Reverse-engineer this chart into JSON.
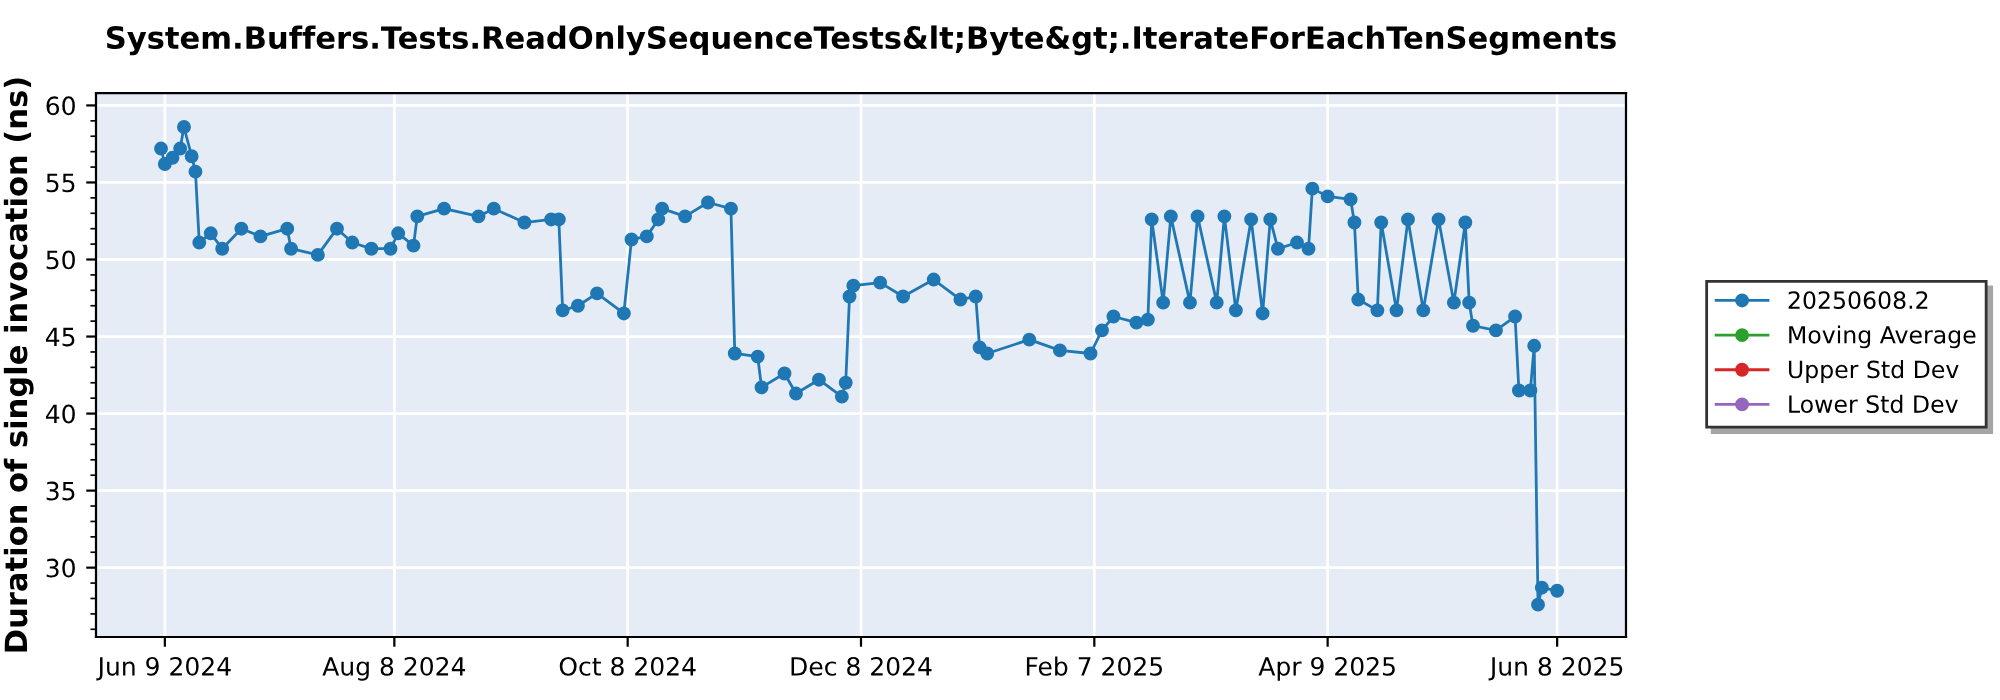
{
  "chart_data": {
    "type": "line",
    "title": "System.Buffers.Tests.ReadOnlySequenceTests&lt;Byte&gt;.IterateForEachTenSegments",
    "ylabel": "Duration of single invocation (ns)",
    "x": [
      "2024-06-08",
      "2024-06-09",
      "2024-06-11",
      "2024-06-13",
      "2024-06-14",
      "2024-06-16",
      "2024-06-17",
      "2024-06-18",
      "2024-06-21",
      "2024-06-24",
      "2024-06-29",
      "2024-07-04",
      "2024-07-11",
      "2024-07-12",
      "2024-07-19",
      "2024-07-24",
      "2024-07-28",
      "2024-08-02",
      "2024-08-07",
      "2024-08-09",
      "2024-08-13",
      "2024-08-14",
      "2024-08-21",
      "2024-08-30",
      "2024-09-03",
      "2024-09-11",
      "2024-09-18",
      "2024-09-20",
      "2024-09-21",
      "2024-09-25",
      "2024-09-30",
      "2024-10-07",
      "2024-10-09",
      "2024-10-13",
      "2024-10-16",
      "2024-10-17",
      "2024-10-23",
      "2024-10-29",
      "2024-11-04",
      "2024-11-05",
      "2024-11-11",
      "2024-11-12",
      "2024-11-18",
      "2024-11-21",
      "2024-11-27",
      "2024-12-03",
      "2024-12-04",
      "2024-12-05",
      "2024-12-06",
      "2024-12-13",
      "2024-12-19",
      "2024-12-27",
      "2025-01-03",
      "2025-01-07",
      "2025-01-08",
      "2025-01-10",
      "2025-01-21",
      "2025-01-29",
      "2025-02-06",
      "2025-02-09",
      "2025-02-12",
      "2025-02-18",
      "2025-02-21",
      "2025-02-22",
      "2025-02-25",
      "2025-02-27",
      "2025-03-04",
      "2025-03-06",
      "2025-03-11",
      "2025-03-13",
      "2025-03-16",
      "2025-03-20",
      "2025-03-23",
      "2025-03-25",
      "2025-03-27",
      "2025-04-01",
      "2025-04-04",
      "2025-04-05",
      "2025-04-09",
      "2025-04-15",
      "2025-04-16",
      "2025-04-17",
      "2025-04-22",
      "2025-04-23",
      "2025-04-27",
      "2025-04-30",
      "2025-05-04",
      "2025-05-08",
      "2025-05-12",
      "2025-05-15",
      "2025-05-16",
      "2025-05-17",
      "2025-05-23",
      "2025-05-28",
      "2025-05-29",
      "2025-06-01",
      "2025-06-02",
      "2025-06-03",
      "2025-06-04",
      "2025-06-08"
    ],
    "series": [
      {
        "name": "20250608.2",
        "color": "#1f77b4",
        "values": [
          57.2,
          56.2,
          56.6,
          57.2,
          58.6,
          56.7,
          55.7,
          51.1,
          51.7,
          50.7,
          52.0,
          51.5,
          52.0,
          50.7,
          50.3,
          52.0,
          51.1,
          50.7,
          50.7,
          51.7,
          50.9,
          52.8,
          53.3,
          52.8,
          53.3,
          52.4,
          52.6,
          52.6,
          46.7,
          47.0,
          47.8,
          46.5,
          51.3,
          51.5,
          52.6,
          53.3,
          52.8,
          53.7,
          53.3,
          43.9,
          43.7,
          41.7,
          42.6,
          41.3,
          42.2,
          41.1,
          42.0,
          47.6,
          48.3,
          48.5,
          47.6,
          48.7,
          47.4,
          47.6,
          44.3,
          43.9,
          44.8,
          44.1,
          43.9,
          45.4,
          46.3,
          45.9,
          46.1,
          52.6,
          47.2,
          52.8,
          47.2,
          52.8,
          47.2,
          52.8,
          46.7,
          52.6,
          46.5,
          52.6,
          50.7,
          51.1,
          50.7,
          54.6,
          54.1,
          53.9,
          52.4,
          47.4,
          46.7,
          52.4,
          46.7,
          52.6,
          46.7,
          52.6,
          47.2,
          52.4,
          47.2,
          45.7,
          45.4,
          46.3,
          41.5,
          41.5,
          44.4,
          27.6,
          28.7,
          28.5
        ]
      },
      {
        "name": "Moving Average",
        "color": "#2ca02c",
        "values": [
          null,
          null,
          null,
          null,
          null,
          null,
          null,
          null,
          null,
          null,
          null,
          null,
          null,
          null,
          null,
          null,
          null,
          null,
          null,
          null,
          null,
          null,
          null,
          null,
          null,
          null,
          null,
          null,
          null,
          null,
          null,
          null,
          null,
          null,
          null,
          null,
          null,
          null,
          null,
          null,
          null,
          null,
          null,
          null,
          null,
          null,
          null,
          null,
          null,
          null,
          null,
          null,
          null,
          null,
          null,
          null,
          null,
          null,
          null,
          null,
          null,
          null,
          null,
          null,
          null,
          null,
          null,
          null,
          null,
          null,
          null,
          null,
          null,
          null,
          null,
          null,
          null,
          null,
          null,
          null,
          null,
          null,
          null,
          null,
          null,
          null,
          null,
          null,
          null,
          null,
          null,
          null,
          null,
          null,
          null,
          null,
          null,
          null,
          null,
          null
        ]
      },
      {
        "name": "Upper Std Dev",
        "color": "#d62728",
        "values": [
          null,
          null,
          null,
          null,
          null,
          null,
          null,
          null,
          null,
          null,
          null,
          null,
          null,
          null,
          null,
          null,
          null,
          null,
          null,
          null,
          null,
          null,
          null,
          null,
          null,
          null,
          null,
          null,
          null,
          null,
          null,
          null,
          null,
          null,
          null,
          null,
          null,
          null,
          null,
          null,
          null,
          null,
          null,
          null,
          null,
          null,
          null,
          null,
          null,
          null,
          null,
          null,
          null,
          null,
          null,
          null,
          null,
          null,
          null,
          null,
          null,
          null,
          null,
          null,
          null,
          null,
          null,
          null,
          null,
          null,
          null,
          null,
          null,
          null,
          null,
          null,
          null,
          null,
          null,
          null,
          null,
          null,
          null,
          null,
          null,
          null,
          null,
          null,
          null,
          null,
          null,
          null,
          null,
          null,
          null,
          null,
          null,
          null,
          null,
          null
        ]
      },
      {
        "name": "Lower Std Dev",
        "color": "#9467bd",
        "values": [
          null,
          null,
          null,
          null,
          null,
          null,
          null,
          null,
          null,
          null,
          null,
          null,
          null,
          null,
          null,
          null,
          null,
          null,
          null,
          null,
          null,
          null,
          null,
          null,
          null,
          null,
          null,
          null,
          null,
          null,
          null,
          null,
          null,
          null,
          null,
          null,
          null,
          null,
          null,
          null,
          null,
          null,
          null,
          null,
          null,
          null,
          null,
          null,
          null,
          null,
          null,
          null,
          null,
          null,
          null,
          null,
          null,
          null,
          null,
          null,
          null,
          null,
          null,
          null,
          null,
          null,
          null,
          null,
          null,
          null,
          null,
          null,
          null,
          null,
          null,
          null,
          null,
          null,
          null,
          null,
          null,
          null,
          null,
          null,
          null,
          null,
          null,
          null,
          null,
          null,
          null,
          null,
          null,
          null,
          null,
          null,
          null,
          null,
          null,
          null
        ]
      }
    ],
    "xlim": [
      "2024-05-22",
      "2025-06-26"
    ],
    "xticks": [
      {
        "value": "2024-06-09",
        "label": "Jun 9 2024"
      },
      {
        "value": "2024-08-08",
        "label": "Aug 8 2024"
      },
      {
        "value": "2024-10-08",
        "label": "Oct 8 2024"
      },
      {
        "value": "2024-12-08",
        "label": "Dec 8 2024"
      },
      {
        "value": "2025-02-07",
        "label": "Feb 7 2025"
      },
      {
        "value": "2025-04-09",
        "label": "Apr 9 2025"
      },
      {
        "value": "2025-06-08",
        "label": "Jun 8 2025"
      }
    ],
    "ylim": [
      25.5,
      60.8
    ],
    "yticks": [
      30,
      35,
      40,
      45,
      50,
      55,
      60
    ],
    "grid": true,
    "legend": "right",
    "marker": "circle",
    "line_style": "solid"
  }
}
